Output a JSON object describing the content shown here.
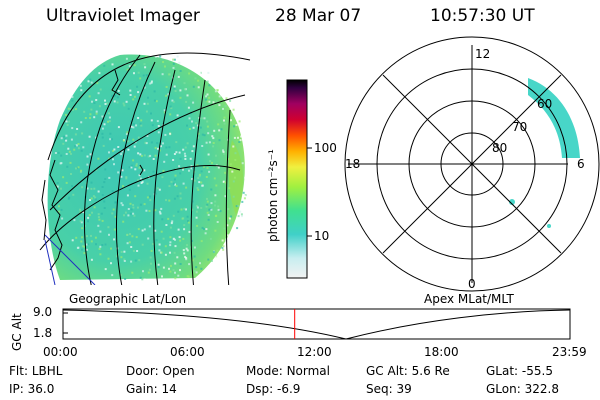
{
  "header": {
    "instrument": "Ultraviolet Imager",
    "date": "28 Mar 07",
    "time": "10:57:30 UT"
  },
  "colorbar": {
    "unit_label": "photon cm⁻²s⁻¹",
    "ticks": [
      "100",
      "10"
    ]
  },
  "polar_plot": {
    "mlt_labels": {
      "top": "12",
      "left": "18",
      "right": "6",
      "bottom": "0"
    },
    "lat_labels": [
      "80",
      "70",
      "60"
    ]
  },
  "captions": {
    "left": "Geographic Lat/Lon",
    "right": "Apex MLat/MLT"
  },
  "orbit_plot": {
    "ylabel": "GC Alt",
    "y_ticks": [
      "9.0",
      "1.8"
    ],
    "x_ticks": [
      "00:00",
      "06:00",
      "12:00",
      "18:00",
      "23:59"
    ],
    "current_time_hours": 10.96,
    "color_marker": "#ff0000"
  },
  "info": {
    "row1": [
      {
        "label": "Flt:",
        "value": "LBHL"
      },
      {
        "label": "Door:",
        "value": "Open"
      },
      {
        "label": "Mode:",
        "value": "Normal"
      },
      {
        "label": "GC Alt:",
        "value": "5.6 Re"
      },
      {
        "label": "GLat:",
        "value": "-55.5"
      }
    ],
    "row2": [
      {
        "label": "IP:",
        "value": "36.0"
      },
      {
        "label": "Gain:",
        "value": "14"
      },
      {
        "label": "Dsp:",
        "value": "-6.9"
      },
      {
        "label": "Seq:",
        "value": "39"
      },
      {
        "label": "GLon:",
        "value": "322.8"
      }
    ]
  }
}
